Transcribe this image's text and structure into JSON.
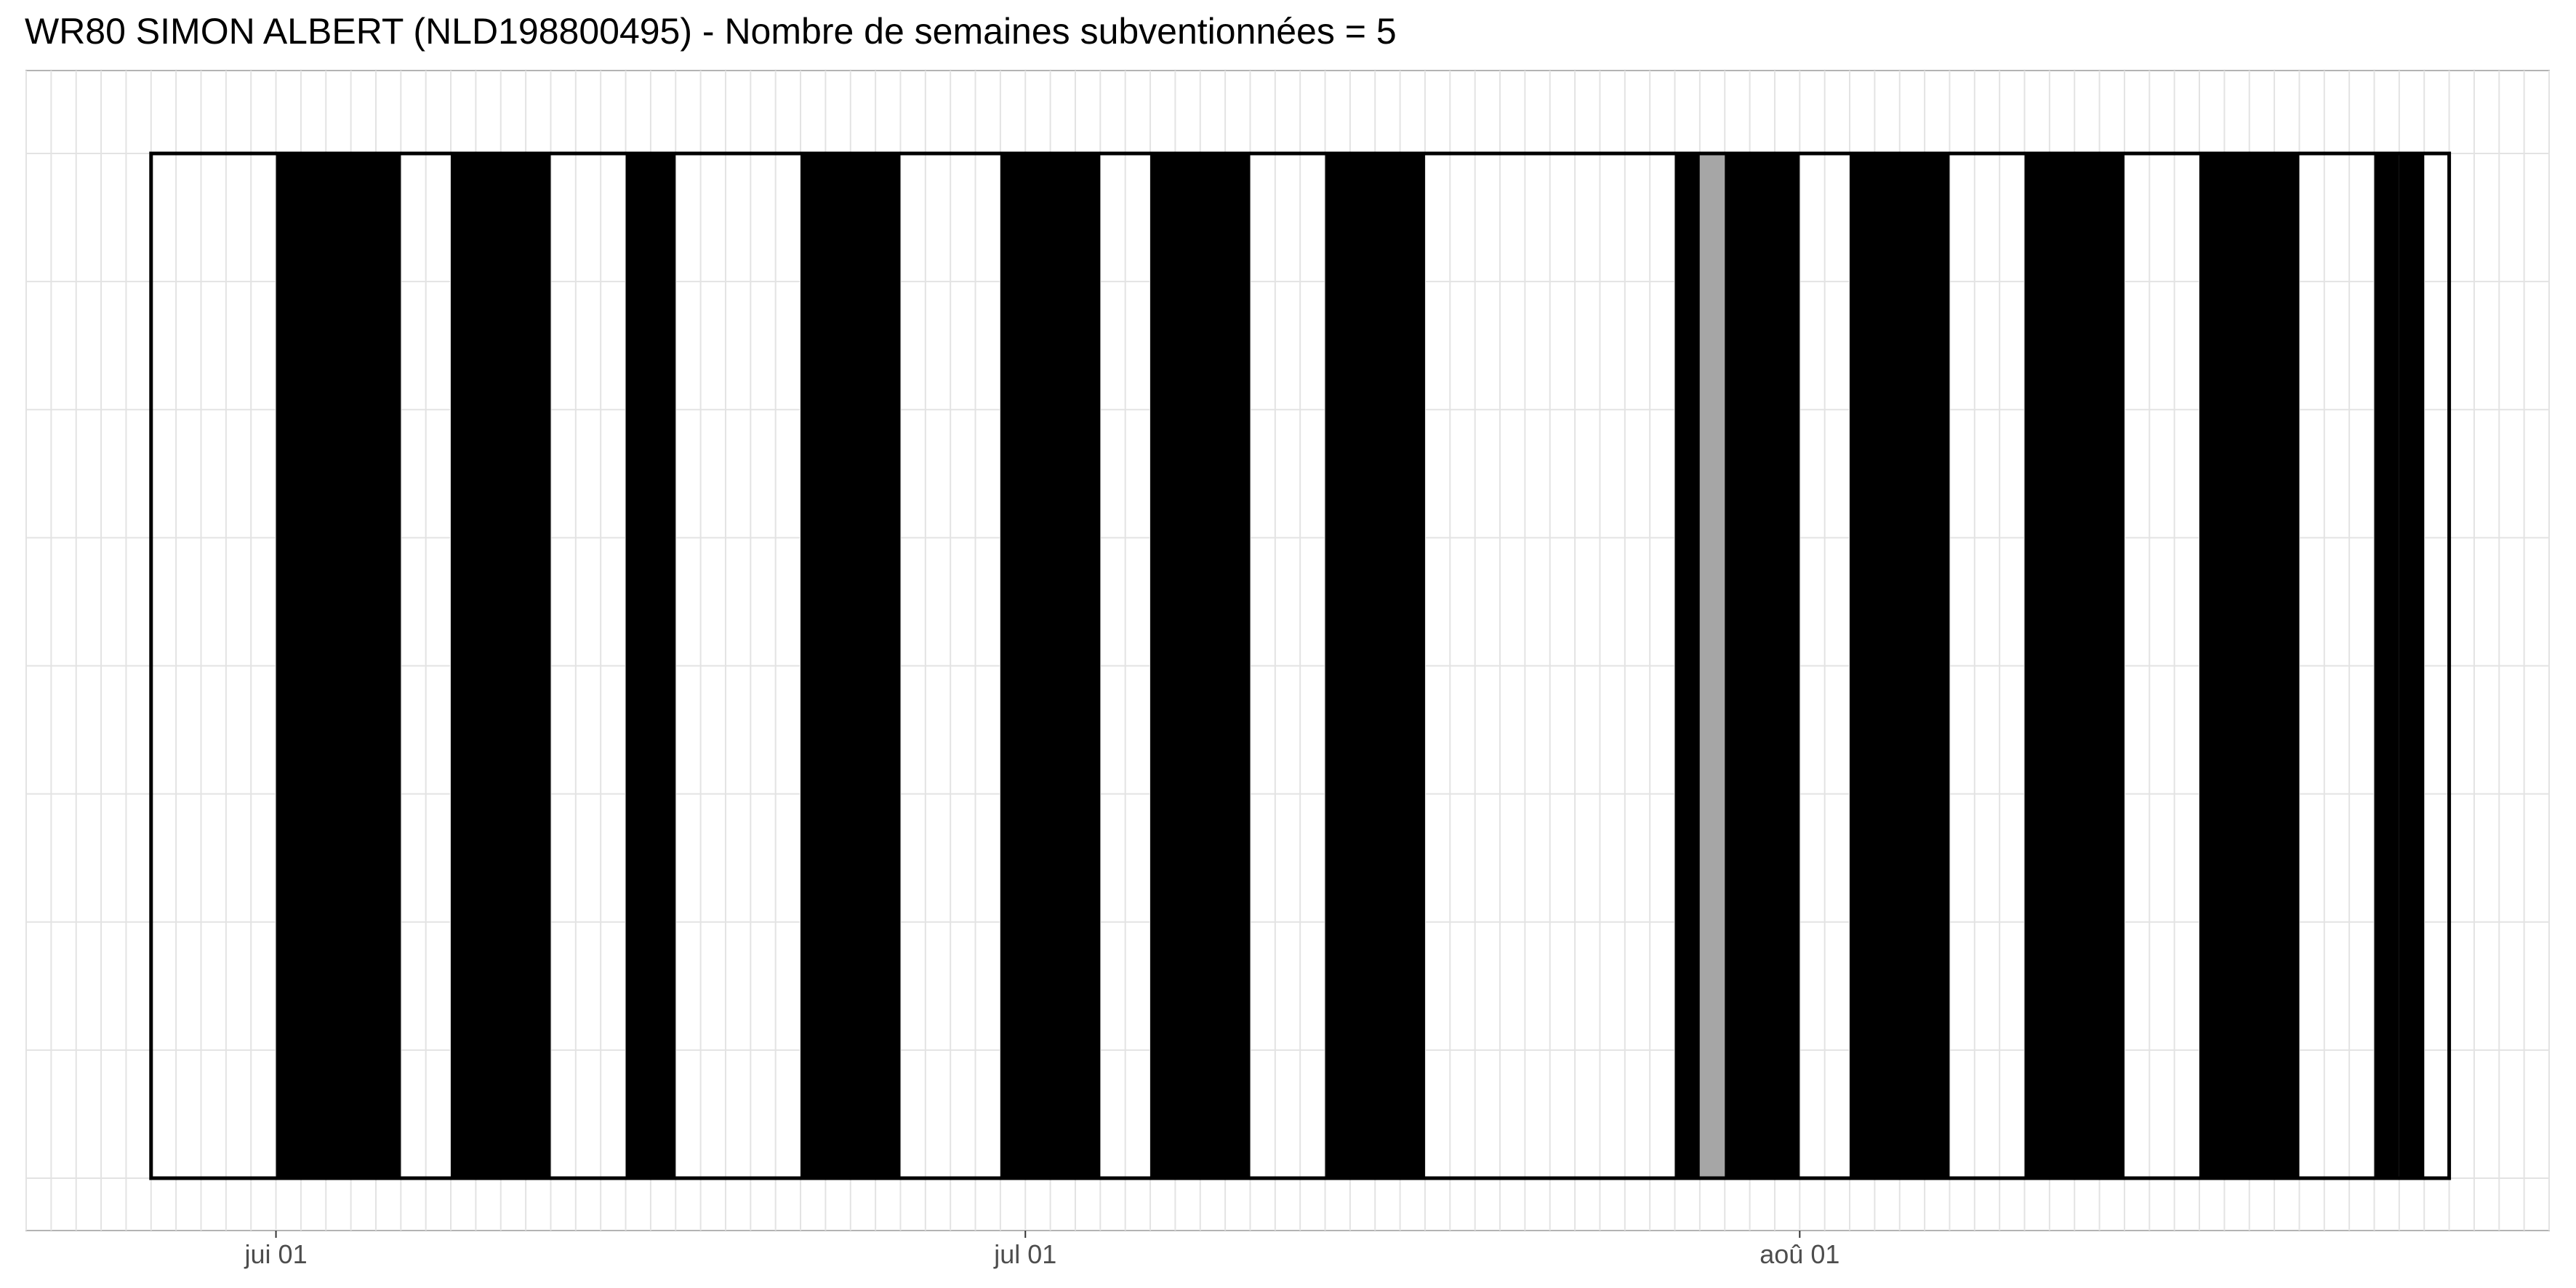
{
  "chart_data": {
    "type": "bar",
    "title": "WR80 SIMON ALBERT (NLD198800495) - Nombre de semaines subventionnées = 5",
    "xlabel": "",
    "ylabel": "",
    "x_axis": {
      "type": "date",
      "range": [
        "2020-05-22",
        "2020-08-31"
      ],
      "tick_labels": [
        {
          "date": "2020-06-01",
          "label": "jui 01"
        },
        {
          "date": "2020-07-01",
          "label": "jul 01"
        },
        {
          "date": "2020-08-01",
          "label": "aoû 01"
        }
      ]
    },
    "grid": true,
    "legend": "none",
    "period": {
      "start": "2020-05-27",
      "end": "2020-08-27"
    },
    "colors": {
      "active": "#000000",
      "subsidized": "#a6a6a6",
      "inactive": "#ffffff",
      "grid": "#e3e3e3"
    },
    "segments": [
      {
        "start": "2020-06-01",
        "end": "2020-06-06",
        "status": "active"
      },
      {
        "start": "2020-06-08",
        "end": "2020-06-12",
        "status": "active"
      },
      {
        "start": "2020-06-15",
        "end": "2020-06-17",
        "status": "active"
      },
      {
        "start": "2020-06-22",
        "end": "2020-06-26",
        "status": "active"
      },
      {
        "start": "2020-06-30",
        "end": "2020-07-04",
        "status": "active"
      },
      {
        "start": "2020-07-06",
        "end": "2020-07-10",
        "status": "active"
      },
      {
        "start": "2020-07-13",
        "end": "2020-07-17",
        "status": "active"
      },
      {
        "start": "2020-07-27",
        "end": "2020-07-28",
        "status": "active"
      },
      {
        "start": "2020-07-28",
        "end": "2020-07-29",
        "status": "subsidized"
      },
      {
        "start": "2020-07-29",
        "end": "2020-08-01",
        "status": "active"
      },
      {
        "start": "2020-08-03",
        "end": "2020-08-07",
        "status": "active"
      },
      {
        "start": "2020-08-10",
        "end": "2020-08-14",
        "status": "active"
      },
      {
        "start": "2020-08-17",
        "end": "2020-08-21",
        "status": "active"
      },
      {
        "start": "2020-08-24",
        "end": "2020-08-25",
        "status": "active"
      },
      {
        "start": "2020-08-25",
        "end": "2020-08-26",
        "status": "active"
      }
    ]
  }
}
